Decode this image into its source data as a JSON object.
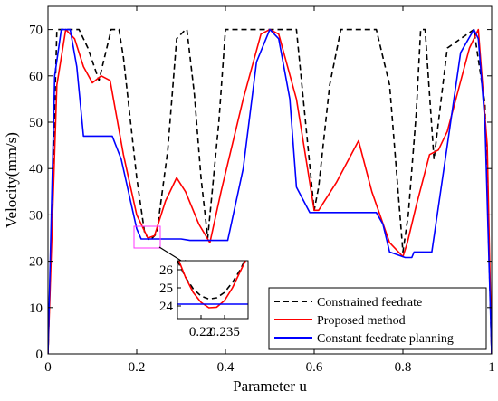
{
  "chart_data": {
    "type": "line",
    "xlabel": "Parameter u",
    "ylabel": "Velocity(mm/s)",
    "xlim": [
      0,
      1
    ],
    "ylim": [
      0,
      75
    ],
    "xticks": [
      "0",
      "0.2",
      "0.4",
      "0.6",
      "0.8",
      "1"
    ],
    "yticks": [
      "0",
      "10",
      "20",
      "30",
      "40",
      "50",
      "60",
      "70"
    ],
    "legend_position": "bottom-right",
    "series": [
      {
        "name": "Constrained feedrate",
        "color": "#000000",
        "style": "dashed",
        "x": [
          0,
          0.02,
          0.07,
          0.09,
          0.115,
          0.14,
          0.142,
          0.16,
          0.17,
          0.2,
          0.218,
          0.23,
          0.245,
          0.27,
          0.29,
          0.31,
          0.313,
          0.33,
          0.345,
          0.36,
          0.385,
          0.4,
          0.46,
          0.5,
          0.56,
          0.6,
          0.61,
          0.635,
          0.66,
          0.74,
          0.77,
          0.8,
          0.812,
          0.83,
          0.84,
          0.85,
          0.87,
          0.9,
          0.96,
          0.985,
          1
        ],
        "y": [
          0,
          70,
          70,
          66,
          59,
          69,
          70,
          70,
          64,
          38,
          26,
          24.5,
          26,
          44,
          68,
          70,
          70,
          56,
          38,
          25,
          50,
          70,
          70,
          70,
          70,
          31,
          36,
          58,
          70,
          70,
          58,
          22,
          30,
          52,
          70,
          70,
          42,
          66,
          70,
          54,
          0
        ]
      },
      {
        "name": "Proposed method",
        "color": "#ff0000",
        "style": "solid",
        "x": [
          0,
          0.02,
          0.04,
          0.06,
          0.08,
          0.1,
          0.12,
          0.14,
          0.17,
          0.2,
          0.225,
          0.24,
          0.265,
          0.29,
          0.31,
          0.34,
          0.365,
          0.39,
          0.44,
          0.48,
          0.5,
          0.52,
          0.56,
          0.6,
          0.61,
          0.65,
          0.7,
          0.73,
          0.77,
          0.8,
          0.81,
          0.83,
          0.86,
          0.88,
          0.9,
          0.95,
          0.97,
          0.99,
          1
        ],
        "y": [
          0,
          58,
          70,
          68,
          62,
          58.5,
          60,
          59,
          43,
          30,
          25,
          25.5,
          33,
          38,
          35,
          28,
          24,
          35,
          55,
          69,
          70,
          69,
          55,
          31,
          31,
          37,
          46,
          35,
          24,
          21,
          24,
          32,
          43,
          44,
          48,
          66,
          70,
          45,
          0
        ]
      },
      {
        "name": "Constant feedrate planning",
        "color": "#0000ff",
        "style": "solid",
        "x": [
          0,
          0.015,
          0.03,
          0.05,
          0.065,
          0.08,
          0.145,
          0.165,
          0.2,
          0.21,
          0.3,
          0.32,
          0.355,
          0.38,
          0.405,
          0.44,
          0.47,
          0.5,
          0.52,
          0.545,
          0.56,
          0.59,
          0.605,
          0.74,
          0.755,
          0.77,
          0.805,
          0.82,
          0.825,
          0.86,
          0.865,
          0.9,
          0.93,
          0.96,
          0.97,
          0.985,
          1
        ],
        "y": [
          0,
          60,
          70,
          70,
          62,
          47,
          47,
          42,
          27,
          24.8,
          24.8,
          24.5,
          24.5,
          24.5,
          24.5,
          40,
          63,
          70,
          68,
          55,
          36,
          30.5,
          30.5,
          30.5,
          28,
          22,
          20.8,
          20.8,
          22,
          22,
          22,
          45,
          65,
          70,
          68,
          50,
          0
        ]
      }
    ],
    "inset": {
      "xlim": [
        0.205,
        0.25
      ],
      "ylim": [
        23.3,
        26.5
      ],
      "xticks": [
        "0.22",
        "0.235"
      ],
      "yticks": [
        "24",
        "25",
        "26"
      ],
      "series": [
        {
          "name": "Constrained feedrate",
          "color": "#000000",
          "style": "dashed",
          "x": [
            0.205,
            0.21,
            0.215,
            0.22,
            0.225,
            0.23,
            0.235,
            0.24,
            0.245,
            0.25
          ],
          "y": [
            26.5,
            25.6,
            24.95,
            24.55,
            24.38,
            24.45,
            24.75,
            25.3,
            26.0,
            26.9
          ]
        },
        {
          "name": "Proposed method",
          "color": "#ff0000",
          "style": "solid",
          "x": [
            0.205,
            0.21,
            0.215,
            0.22,
            0.225,
            0.23,
            0.235,
            0.24,
            0.245,
            0.25
          ],
          "y": [
            26.7,
            25.6,
            24.75,
            24.2,
            23.9,
            23.93,
            24.3,
            25.0,
            25.9,
            26.8
          ]
        },
        {
          "name": "Constant feedrate planning",
          "color": "#0000ff",
          "style": "solid",
          "x": [
            0.205,
            0.25
          ],
          "y": [
            24.1,
            24.1
          ]
        }
      ]
    }
  }
}
